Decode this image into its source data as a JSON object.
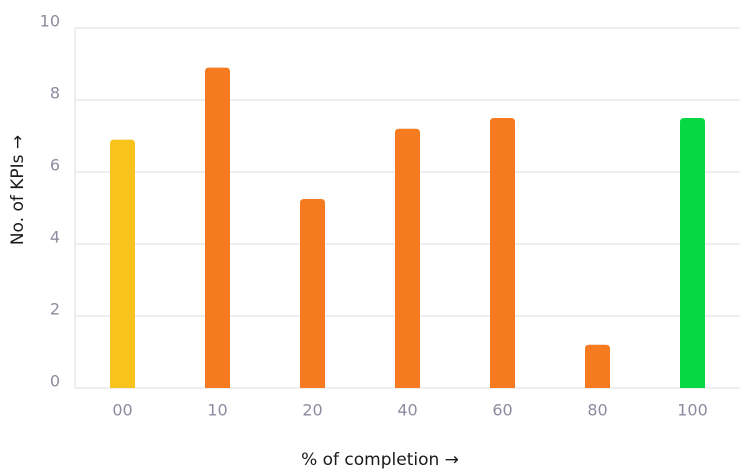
{
  "chart_data": {
    "type": "bar",
    "x_label": "% of completion →",
    "y_label": "No. of KPIs →",
    "categories": [
      "00",
      "10",
      "20",
      "40",
      "60",
      "80",
      "100"
    ],
    "values": [
      6.9,
      8.9,
      5.25,
      7.2,
      7.5,
      1.2,
      7.5
    ],
    "colors": [
      "#f7c31c",
      "#f67a1f",
      "#f67a1f",
      "#f67a1f",
      "#f67a1f",
      "#f67a1f",
      "#06d844"
    ],
    "ylim": [
      0,
      10
    ],
    "yticks": [
      0,
      2,
      4,
      6,
      8,
      10
    ],
    "grid": true
  }
}
